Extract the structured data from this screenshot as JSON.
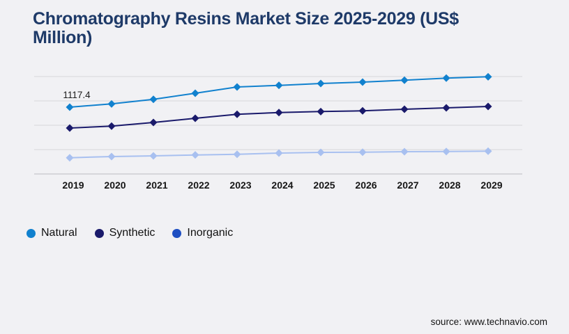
{
  "chart_data": {
    "type": "line",
    "title": "Chromatography Resins Market Size 2025-2029 (US$ Million)",
    "title_lines": [
      "Chromatography Resins Market Size 2025-2029 (US$",
      "Million)"
    ],
    "x": [
      "2019",
      "2020",
      "2021",
      "2022",
      "2023",
      "2024",
      "2025",
      "2026",
      "2027",
      "2028",
      "2029"
    ],
    "series": [
      {
        "name": "Natural",
        "color": "#1181ce",
        "legend_color": "#1181ce",
        "values": [
          1117.4,
          1172,
          1249,
          1350,
          1455,
          1482,
          1513,
          1536,
          1568,
          1603,
          1626
        ],
        "point_label": {
          "index": 0,
          "text": "1117.4"
        }
      },
      {
        "name": "Synthetic",
        "color": "#1a1a6b",
        "legend_color": "#1a1a6b",
        "values": [
          768,
          800,
          861,
          931,
          998,
          1028,
          1044,
          1056,
          1082,
          1106,
          1129
        ]
      },
      {
        "name": "Inorganic",
        "color": "#a8c0f0",
        "legend_color": "#1e4fc2",
        "values": [
          271,
          291,
          303,
          318,
          329,
          349,
          361,
          364,
          372,
          376,
          381
        ]
      }
    ],
    "ylim": [
      0,
      1781
    ],
    "grid": true,
    "marker": "diamond",
    "legend_position": "bottom-left",
    "xlabel": "",
    "ylabel": ""
  },
  "colors": {
    "background": "#f1f1f4",
    "title": "#1e3a68",
    "grid": "#d6d6da",
    "axis": "#bcbcc1",
    "tick_text": "#161616",
    "point_label_text": "#1c1c1c"
  },
  "source": {
    "label": "source: www.technavio.com"
  }
}
